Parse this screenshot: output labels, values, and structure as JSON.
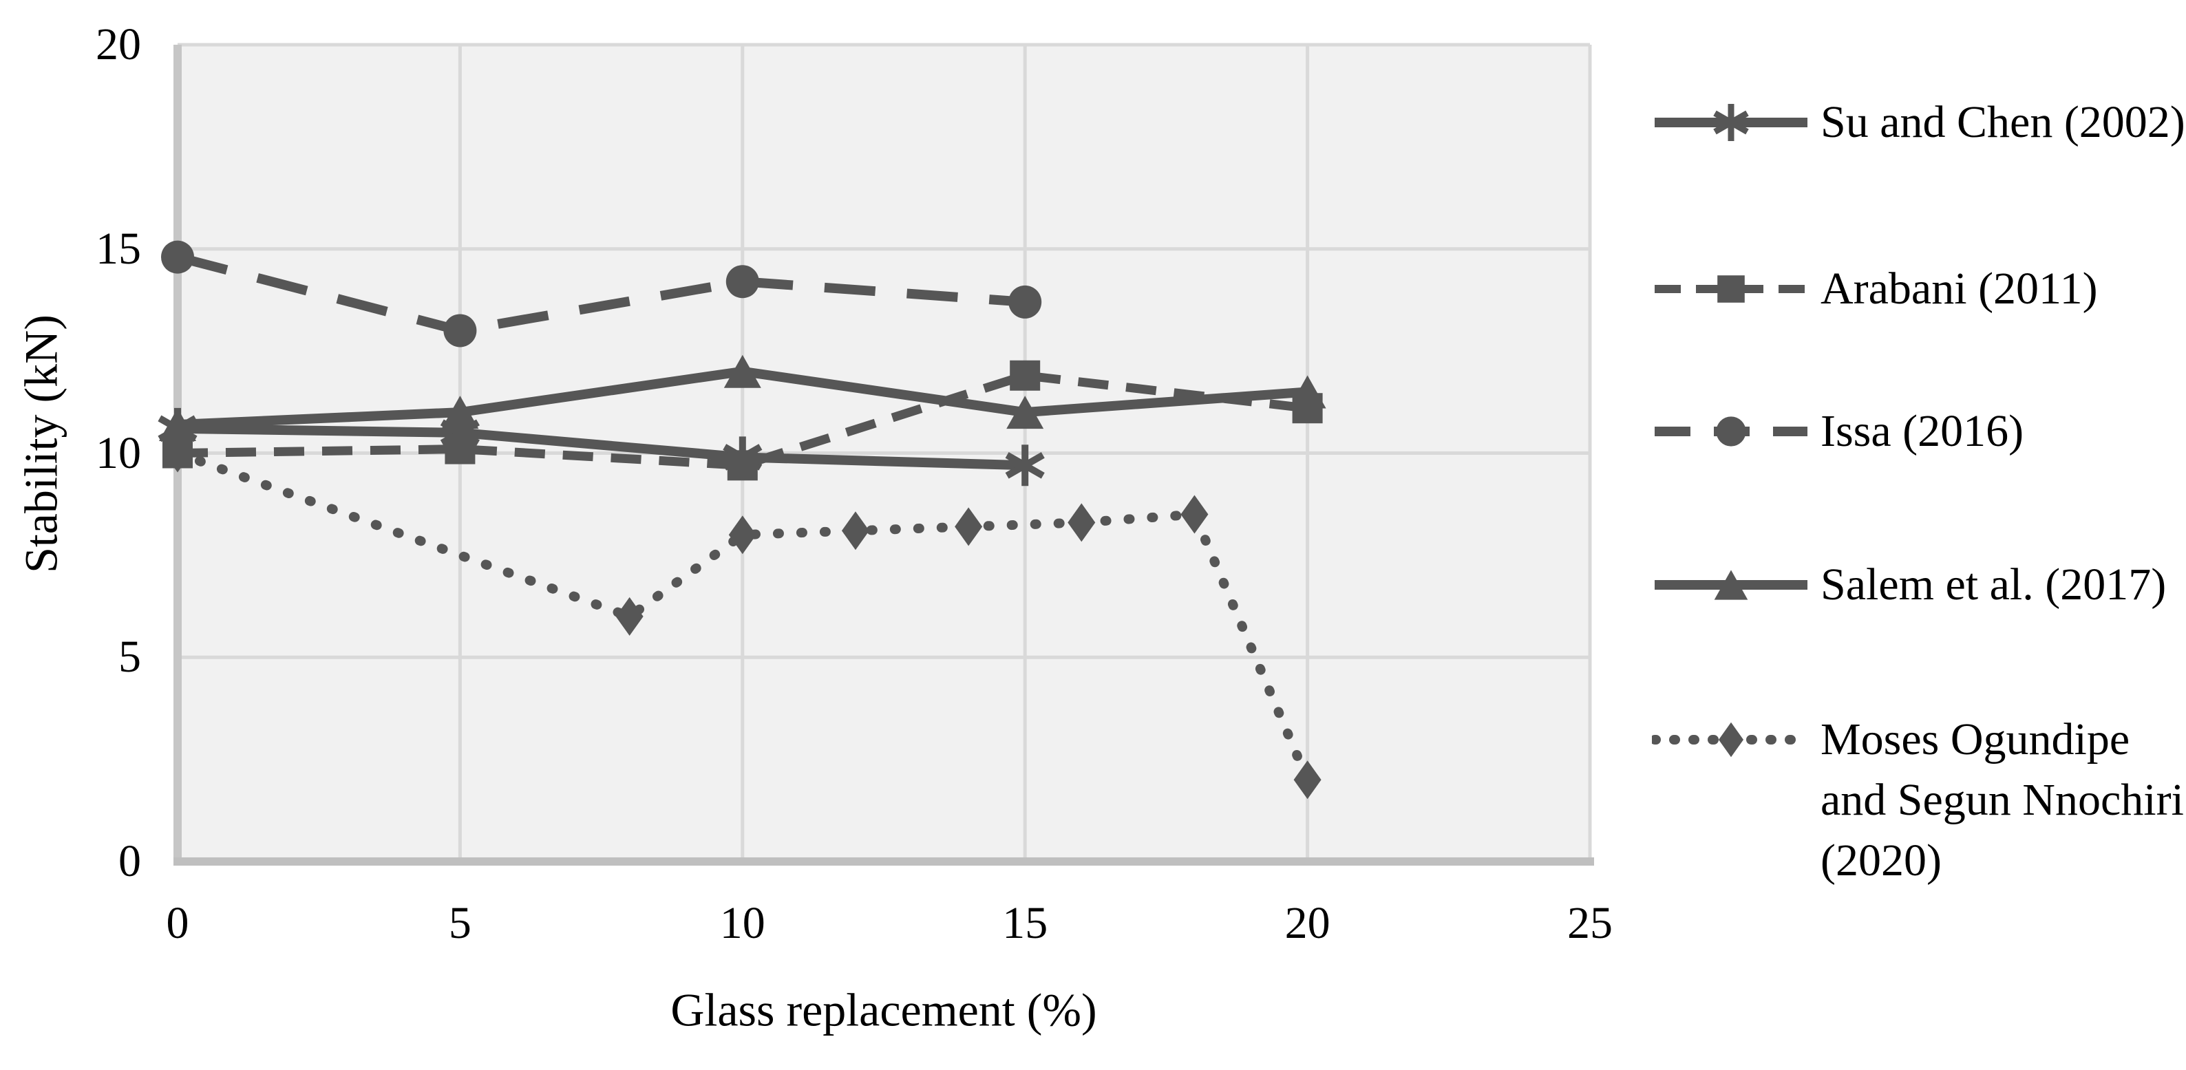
{
  "chart_data": {
    "type": "line",
    "title": "",
    "xlabel": "Glass replacement (%)",
    "ylabel": "Stability (kN)",
    "xlim": [
      0,
      25
    ],
    "ylim": [
      0,
      20
    ],
    "x_ticks": [
      0,
      5,
      10,
      15,
      20,
      25
    ],
    "y_ticks": [
      0,
      5,
      10,
      15,
      20
    ],
    "grid": true,
    "legend_position": "right",
    "colors": {
      "series": "#565656",
      "plot_background": "#F1F1F1",
      "gridline": "#D9D9D9",
      "left_axis_line": "#C6C6C6",
      "bottom_axis_line": "#BFBFBF",
      "text": "#000000"
    },
    "series": [
      {
        "name": "Su and Chen (2002)",
        "line": "solid",
        "marker": "asterisk",
        "points": [
          [
            0,
            10.6
          ],
          [
            5,
            10.5
          ],
          [
            10,
            9.9
          ],
          [
            15,
            9.7
          ]
        ]
      },
      {
        "name": "Arabani (2011)",
        "line": "dashed",
        "marker": "square",
        "points": [
          [
            0,
            10.0
          ],
          [
            5,
            10.1
          ],
          [
            10,
            9.7
          ],
          [
            15,
            11.9
          ],
          [
            20,
            11.1
          ]
        ]
      },
      {
        "name": "Issa (2016)",
        "line": "long-dashed",
        "marker": "circle",
        "points": [
          [
            0,
            14.8
          ],
          [
            5,
            13.0
          ],
          [
            10,
            14.2
          ],
          [
            15,
            13.7
          ]
        ]
      },
      {
        "name": "Salem et al. (2017)",
        "line": "solid",
        "marker": "triangle",
        "points": [
          [
            0,
            10.7
          ],
          [
            5,
            11.0
          ],
          [
            10,
            12.0
          ],
          [
            15,
            11.0
          ],
          [
            20,
            11.5
          ]
        ]
      },
      {
        "name": "Moses Ogundipe and Segun Nnochiri (2020)",
        "line": "dotted",
        "marker": "diamond",
        "points": [
          [
            0,
            10.0
          ],
          [
            8,
            6.0
          ],
          [
            10,
            8.0
          ],
          [
            12,
            8.1
          ],
          [
            14,
            8.2
          ],
          [
            16,
            8.3
          ],
          [
            18,
            8.5
          ],
          [
            20,
            2.0
          ]
        ]
      }
    ]
  }
}
